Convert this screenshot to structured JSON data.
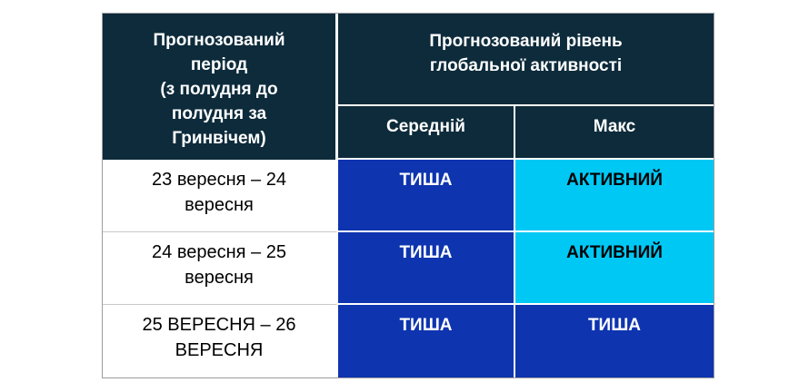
{
  "colors": {
    "header_bg": "#0d2b3b",
    "header_text": "#ffffff",
    "quiet_bg": "#0e34af",
    "quiet_text": "#ffffff",
    "active_bg": "#00c8f5",
    "active_text": "#000000",
    "grid_line": "#9d9d9d"
  },
  "table": {
    "period_header": "Прогнозований\nперіод\n(з полудня до\nполудня за\nГринвічем)",
    "activity_header": "Прогнозований рівень\nглобальної активності",
    "sub_medium": "Середній",
    "sub_max": "Макс",
    "rows": [
      {
        "period": "23 вересня – 24\nвересня",
        "medium": {
          "label": "ТИША",
          "level": "quiet"
        },
        "max": {
          "label": "АКТИВНИЙ",
          "level": "active"
        }
      },
      {
        "period": "24 вересня – 25\nвересня",
        "medium": {
          "label": "ТИША",
          "level": "quiet"
        },
        "max": {
          "label": "АКТИВНИЙ",
          "level": "active"
        }
      },
      {
        "period": "25 ВЕРЕСНЯ – 26\nВЕРЕСНЯ",
        "medium": {
          "label": "ТИША",
          "level": "quiet"
        },
        "max": {
          "label": "ТИША",
          "level": "quiet"
        }
      }
    ]
  },
  "chart_data": {
    "type": "table",
    "title": "Прогнозований рівень глобальної активності",
    "columns": [
      "Прогнозований період (з полудня до полудня за Гринвічем)",
      "Середній",
      "Макс"
    ],
    "rows": [
      [
        "23 вересня – 24 вересня",
        "ТИША",
        "АКТИВНИЙ"
      ],
      [
        "24 вересня – 25 вересня",
        "ТИША",
        "АКТИВНИЙ"
      ],
      [
        "25 ВЕРЕСНЯ – 26 ВЕРЕСНЯ",
        "ТИША",
        "ТИША"
      ]
    ]
  }
}
